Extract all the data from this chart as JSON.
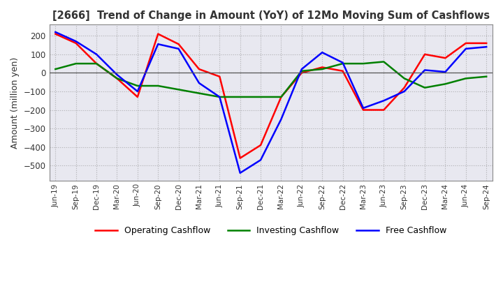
{
  "title": "[2666]  Trend of Change in Amount (YoY) of 12Mo Moving Sum of Cashflows",
  "ylabel": "Amount (million yen)",
  "x_labels": [
    "Jun-19",
    "Sep-19",
    "Dec-19",
    "Mar-20",
    "Jun-20",
    "Sep-20",
    "Dec-20",
    "Mar-21",
    "Jun-21",
    "Sep-21",
    "Dec-21",
    "Mar-22",
    "Jun-22",
    "Sep-22",
    "Dec-22",
    "Mar-23",
    "Jun-23",
    "Sep-23",
    "Dec-23",
    "Mar-24",
    "Jun-24",
    "Sep-24"
  ],
  "operating": [
    210,
    160,
    50,
    -30,
    -130,
    210,
    155,
    20,
    -20,
    -460,
    -390,
    -130,
    0,
    30,
    10,
    -200,
    -200,
    -80,
    100,
    80,
    160,
    160
  ],
  "investing": [
    20,
    50,
    50,
    -30,
    -70,
    -70,
    -90,
    -110,
    -130,
    -130,
    -130,
    -130,
    10,
    20,
    50,
    50,
    60,
    -30,
    -80,
    -60,
    -30,
    -20
  ],
  "free": [
    220,
    170,
    100,
    -10,
    -100,
    155,
    130,
    -55,
    -130,
    -540,
    -470,
    -250,
    20,
    110,
    55,
    -190,
    -150,
    -100,
    15,
    5,
    130,
    140
  ],
  "ylim": [
    -580,
    260
  ],
  "yticks": [
    -500,
    -400,
    -300,
    -200,
    -100,
    0,
    100,
    200
  ],
  "colors": {
    "operating": "#ff0000",
    "investing": "#008000",
    "free": "#0000ff"
  },
  "legend_labels": [
    "Operating Cashflow",
    "Investing Cashflow",
    "Free Cashflow"
  ],
  "bg_color": "#ffffff",
  "plot_bg_color": "#e8e8f0",
  "grid_color": "#888888"
}
